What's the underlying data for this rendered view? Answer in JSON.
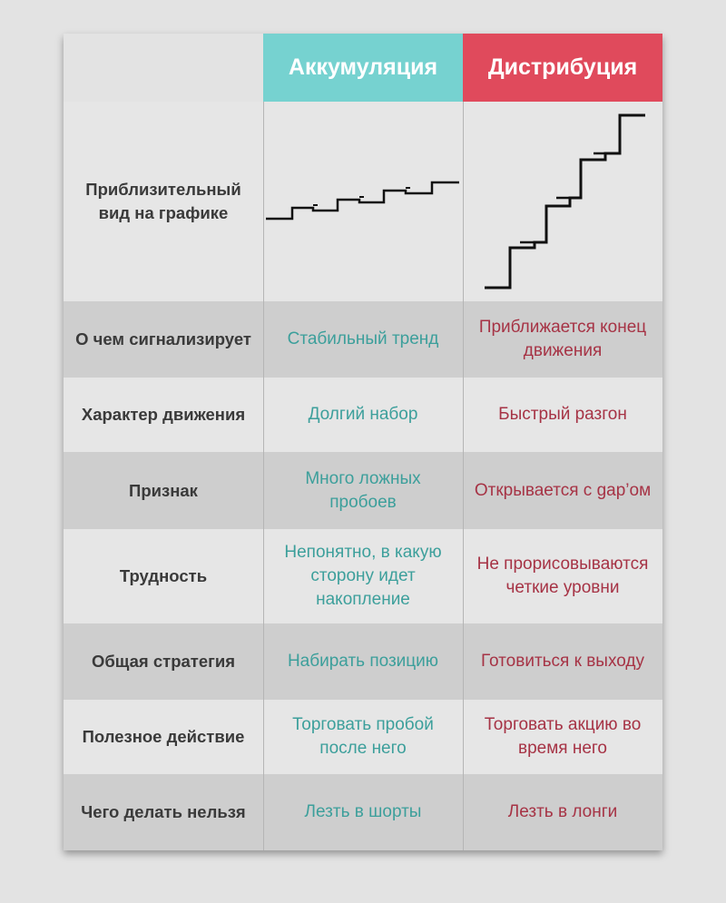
{
  "columns": {
    "accumulation": "Аккумуляция",
    "distribution": "Дистрибуция"
  },
  "chart_label": "Приблизительный вид на графике",
  "rows": [
    {
      "label": "О чем сигнализирует",
      "accumulation": "Стабильный тренд",
      "distribution": "Приближается конец движения"
    },
    {
      "label": "Характер движения",
      "accumulation": "Долгий набор",
      "distribution": "Быстрый разгон"
    },
    {
      "label": "Признак",
      "accumulation": "Много ложных пробоев",
      "distribution": "Открывается с gap’ом"
    },
    {
      "label": "Трудность",
      "accumulation": "Непонятно, в какую сторону идет накопление",
      "distribution": "Не прорисовываются четкие уровни"
    },
    {
      "label": "Общая стратегия",
      "accumulation": "Набирать позицию",
      "distribution": "Готовиться к выходу"
    },
    {
      "label": "Полезное действие",
      "accumulation": "Торговать пробой после него",
      "distribution": "Торговать акцию во время него"
    },
    {
      "label": "Чего делать нельзя",
      "accumulation": "Лезть в шорты",
      "distribution": "Лезть в лонги"
    }
  ],
  "colors": {
    "accumulation_header": "#76d2d0",
    "distribution_header": "#e04a5c",
    "accumulation_text": "#3c9f9b",
    "distribution_text": "#a63345"
  }
}
